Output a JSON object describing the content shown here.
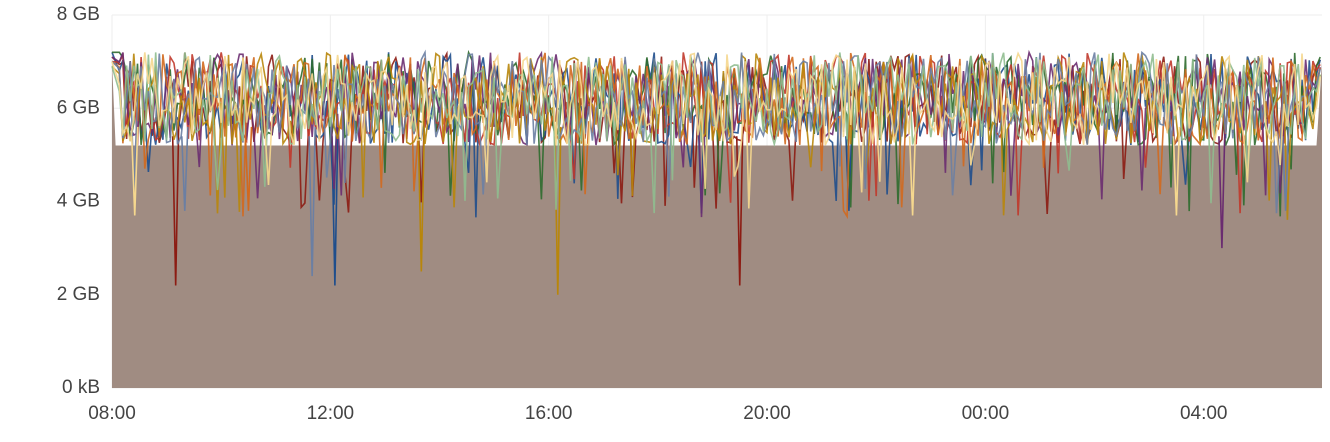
{
  "chart_data": {
    "type": "area",
    "title": "",
    "xlabel": "",
    "ylabel": "",
    "ylim": [
      0,
      8
    ],
    "y_unit": "GB",
    "yticks": [
      {
        "value": 0,
        "label": "0 kB"
      },
      {
        "value": 2,
        "label": "2 GB"
      },
      {
        "value": 4,
        "label": "4 GB"
      },
      {
        "value": 6,
        "label": "6 GB"
      },
      {
        "value": 8,
        "label": "8 GB"
      }
    ],
    "xlim": [
      "08:00",
      "06:10"
    ],
    "xticks": [
      "08:00",
      "12:00",
      "16:00",
      "20:00",
      "00:00",
      "04:00"
    ],
    "grid": true,
    "legend": "none",
    "fill_color": "#a08c82",
    "series": [
      {
        "color": "#8c1c13",
        "x": [
          "08:00",
          "08:20",
          "09:00",
          "09:10",
          "10:00",
          "11:00",
          "12:00",
          "13:00",
          "14:00",
          "15:00",
          "16:00",
          "17:00",
          "18:00",
          "19:00",
          "19:30",
          "20:00",
          "21:00",
          "22:00",
          "23:00",
          "00:00",
          "01:00",
          "02:00",
          "03:00",
          "04:00",
          "05:00",
          "06:00",
          "06:10"
        ],
        "values": [
          7.1,
          6.7,
          6.0,
          2.2,
          5.6,
          6.2,
          5.4,
          6.6,
          5.9,
          6.3,
          5.8,
          6.5,
          6.1,
          6.7,
          2.2,
          6.3,
          5.7,
          6.6,
          6.1,
          6.4,
          5.7,
          6.5,
          6.2,
          6.6,
          5.9,
          6.8,
          7.1
        ]
      },
      {
        "color": "#1f4e8c",
        "x": [
          "08:00",
          "08:20",
          "09:00",
          "10:00",
          "11:00",
          "12:00",
          "12:05",
          "13:00",
          "14:00",
          "15:00",
          "16:00",
          "17:00",
          "18:00",
          "19:00",
          "20:00",
          "21:00",
          "21:30",
          "22:00",
          "23:00",
          "00:00",
          "01:00",
          "02:00",
          "03:00",
          "04:00",
          "05:00",
          "06:00",
          "06:10"
        ],
        "values": [
          7.2,
          6.2,
          5.6,
          6.5,
          5.8,
          6.4,
          2.2,
          6.1,
          5.9,
          6.6,
          6.0,
          5.7,
          6.4,
          5.9,
          6.5,
          5.8,
          3.8,
          6.2,
          6.0,
          6.6,
          5.9,
          6.4,
          5.7,
          6.3,
          5.9,
          6.4,
          7.2
        ]
      },
      {
        "color": "#2e6b2e",
        "x": [
          "08:00",
          "08:20",
          "09:00",
          "10:00",
          "11:00",
          "12:00",
          "13:00",
          "14:00",
          "15:00",
          "16:00",
          "17:00",
          "18:00",
          "19:00",
          "20:00",
          "21:00",
          "22:00",
          "23:00",
          "00:00",
          "01:00",
          "02:00",
          "03:00",
          "04:00",
          "05:00",
          "06:00",
          "06:10"
        ],
        "values": [
          7.2,
          7.2,
          6.4,
          6.8,
          6.2,
          6.6,
          6.0,
          6.9,
          6.3,
          6.7,
          6.1,
          6.8,
          6.5,
          6.6,
          6.2,
          6.9,
          6.4,
          6.7,
          6.3,
          6.8,
          6.2,
          6.6,
          6.4,
          6.7,
          7.2
        ]
      },
      {
        "color": "#c0392b",
        "x": [
          "08:00",
          "09:00",
          "10:00",
          "11:00",
          "12:00",
          "13:00",
          "14:00",
          "15:00",
          "16:00",
          "17:00",
          "18:00",
          "19:00",
          "20:00",
          "21:00",
          "22:00",
          "23:00",
          "00:00",
          "01:00",
          "02:00",
          "03:00",
          "04:00",
          "05:00",
          "06:00",
          "06:10"
        ],
        "values": [
          7.0,
          6.9,
          6.2,
          6.8,
          6.4,
          6.9,
          6.1,
          6.7,
          6.5,
          6.9,
          6.3,
          6.8,
          6.6,
          6.2,
          6.9,
          6.4,
          6.8,
          6.0,
          6.7,
          6.4,
          6.9,
          6.2,
          6.7,
          7.0
        ]
      },
      {
        "color": "#6a2c70",
        "x": [
          "08:00",
          "09:00",
          "09:30",
          "10:00",
          "11:00",
          "12:00",
          "13:00",
          "14:00",
          "15:00",
          "16:00",
          "17:00",
          "18:00",
          "19:00",
          "20:00",
          "21:00",
          "22:00",
          "23:00",
          "00:00",
          "01:00",
          "02:00",
          "03:00",
          "04:00",
          "04:20",
          "05:00",
          "06:00",
          "06:10"
        ],
        "values": [
          7.1,
          6.3,
          5.2,
          6.6,
          5.9,
          6.5,
          5.6,
          6.2,
          5.4,
          6.7,
          6.0,
          6.4,
          5.7,
          6.5,
          6.1,
          5.5,
          6.6,
          6.0,
          6.3,
          5.6,
          6.5,
          5.9,
          3.0,
          6.4,
          6.0,
          7.1
        ]
      },
      {
        "color": "#d2691e",
        "x": [
          "08:00",
          "09:00",
          "10:00",
          "10:30",
          "11:00",
          "12:00",
          "13:00",
          "14:00",
          "15:00",
          "16:00",
          "17:00",
          "18:00",
          "19:00",
          "20:00",
          "21:00",
          "22:00",
          "23:00",
          "00:00",
          "01:00",
          "02:00",
          "03:00",
          "04:00",
          "05:00",
          "06:00",
          "06:10"
        ],
        "values": [
          7.0,
          6.1,
          5.6,
          3.8,
          6.3,
          5.8,
          6.4,
          5.6,
          6.1,
          5.9,
          6.5,
          5.6,
          6.2,
          5.8,
          6.6,
          5.7,
          6.3,
          5.9,
          5.5,
          6.4,
          5.8,
          6.2,
          5.7,
          6.3,
          7.0
        ]
      },
      {
        "color": "#b8860b",
        "x": [
          "08:00",
          "09:00",
          "10:00",
          "11:00",
          "12:00",
          "13:00",
          "13:40",
          "14:00",
          "15:00",
          "16:00",
          "16:10",
          "17:00",
          "18:00",
          "19:00",
          "20:00",
          "21:00",
          "22:00",
          "23:00",
          "00:00",
          "01:00",
          "02:00",
          "03:00",
          "04:00",
          "05:00",
          "06:00",
          "06:10"
        ],
        "values": [
          6.9,
          5.7,
          6.3,
          5.5,
          6.1,
          5.6,
          2.5,
          6.0,
          5.4,
          5.8,
          2.0,
          6.1,
          5.5,
          6.3,
          5.6,
          6.0,
          5.2,
          5.8,
          5.4,
          5.2,
          5.6,
          5.1,
          5.9,
          5.4,
          6.0,
          6.9
        ]
      },
      {
        "color": "#6b7fa3",
        "x": [
          "08:00",
          "09:00",
          "09:20",
          "10:00",
          "11:00",
          "11:40",
          "12:00",
          "13:00",
          "14:00",
          "15:00",
          "16:00",
          "17:00",
          "18:00",
          "19:00",
          "20:00",
          "21:00",
          "22:00",
          "23:00",
          "00:00",
          "01:00",
          "02:00",
          "03:00",
          "04:00",
          "05:00",
          "05:30",
          "06:00",
          "06:10"
        ],
        "values": [
          7.0,
          5.9,
          3.8,
          6.4,
          5.7,
          2.4,
          6.2,
          5.8,
          6.5,
          5.6,
          6.1,
          5.5,
          6.3,
          5.9,
          6.0,
          5.6,
          6.4,
          5.8,
          6.2,
          5.5,
          6.1,
          5.7,
          6.3,
          5.8,
          3.8,
          6.2,
          7.0
        ]
      },
      {
        "color": "#8fbc8f",
        "x": [
          "08:00",
          "08:15",
          "09:00",
          "10:00",
          "11:00",
          "12:00",
          "13:00",
          "14:00",
          "15:00",
          "16:00",
          "17:00",
          "18:00",
          "19:00",
          "20:00",
          "21:00",
          "22:00",
          "23:00",
          "00:00",
          "01:00",
          "02:00",
          "03:00",
          "04:00",
          "05:00",
          "06:00",
          "06:10"
        ],
        "values": [
          6.9,
          5.9,
          6.2,
          5.6,
          6.1,
          5.7,
          6.3,
          5.8,
          6.0,
          5.5,
          6.2,
          5.7,
          6.1,
          5.9,
          5.6,
          6.2,
          5.8,
          6.0,
          5.5,
          6.1,
          5.7,
          6.2,
          5.6,
          6.0,
          6.9
        ]
      },
      {
        "color": "#f5d78e",
        "x": [
          "08:00",
          "08:20",
          "08:25",
          "09:00",
          "10:00",
          "11:00",
          "12:00",
          "13:00",
          "14:00",
          "15:00",
          "16:00",
          "17:00",
          "18:00",
          "19:00",
          "20:00",
          "21:00",
          "22:00",
          "22:40",
          "23:00",
          "00:00",
          "01:00",
          "02:00",
          "03:00",
          "03:30",
          "04:00",
          "05:00",
          "06:00",
          "06:10"
        ],
        "values": [
          7.0,
          5.8,
          3.7,
          6.1,
          5.6,
          6.0,
          5.3,
          6.2,
          5.5,
          5.9,
          5.4,
          6.1,
          5.6,
          5.8,
          5.2,
          6.0,
          5.5,
          3.7,
          5.9,
          5.4,
          6.0,
          5.3,
          5.9,
          3.7,
          5.6,
          5.8,
          5.4,
          7.0
        ]
      }
    ]
  }
}
